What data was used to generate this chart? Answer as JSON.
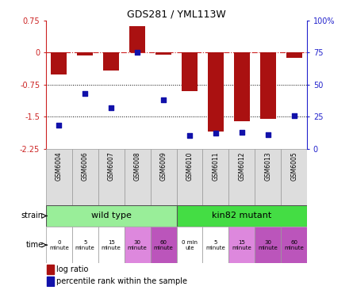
{
  "title": "GDS281 / YML113W",
  "samples": [
    "GSM6004",
    "GSM6006",
    "GSM6007",
    "GSM6008",
    "GSM6009",
    "GSM6010",
    "GSM6011",
    "GSM6012",
    "GSM6013",
    "GSM6005"
  ],
  "log_ratio": [
    -0.52,
    -0.08,
    -0.42,
    0.62,
    -0.05,
    -0.9,
    -1.85,
    -1.6,
    -1.55,
    -0.12
  ],
  "percentile": [
    18,
    43,
    32,
    75,
    38,
    10,
    12,
    13,
    11,
    26
  ],
  "ylim_left": [
    -2.25,
    0.75
  ],
  "ylim_right": [
    0,
    100
  ],
  "left_ticks": [
    0.75,
    0,
    -0.75,
    -1.5,
    -2.25
  ],
  "right_ticks": [
    100,
    75,
    50,
    25,
    0
  ],
  "bar_color": "#AA1111",
  "dot_color": "#1111AA",
  "dotted_lines": [
    -0.75,
    -1.5
  ],
  "strain_wild": "wild type",
  "strain_mutant": "kin82 mutant",
  "wild_color": "#99EE99",
  "mutant_color": "#44DD44",
  "time_labels": [
    "0\nminute",
    "5\nminute",
    "15\nminute",
    "30\nminute",
    "60\nminute",
    "0 min\nute",
    "5\nminute",
    "15\nminute",
    "30\nminute",
    "60\nminute"
  ],
  "wt_colors": [
    "#ffffff",
    "#ffffff",
    "#ffffff",
    "#DD88DD",
    "#BB55BB"
  ],
  "mut_colors": [
    "#ffffff",
    "#ffffff",
    "#DD88DD",
    "#BB55BB",
    "#BB55BB"
  ],
  "legend_bar": "log ratio",
  "legend_dot": "percentile rank within the sample"
}
